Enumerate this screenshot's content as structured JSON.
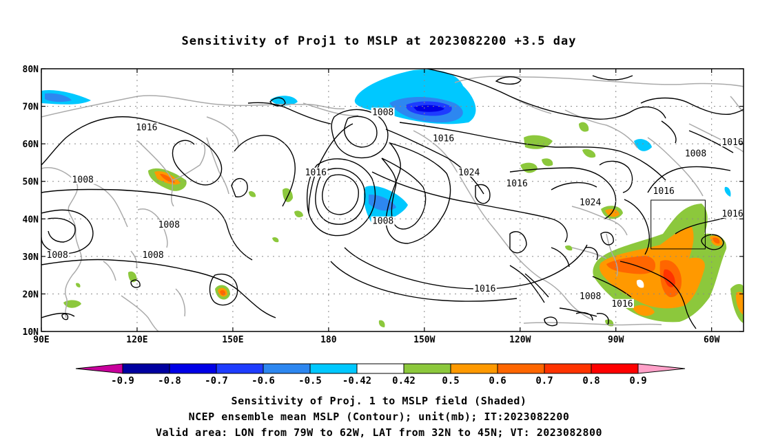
{
  "title": "Sensitivity of Proj1 to MSLP at 2023082200 +3.5 day",
  "captions": [
    "Sensitivity of Proj. 1 to MSLP field (Shaded)",
    "NCEP ensemble mean MSLP (Contour); unit(mb); IT:2023082200",
    "Valid area: LON from 79W to 62W, LAT from 32N to 45N; VT: 2023082800"
  ],
  "map": {
    "lon_range": [
      90,
      310
    ],
    "lat_range": [
      10,
      80
    ],
    "lon_ticks": [
      {
        "lon": 90,
        "label": "90E"
      },
      {
        "lon": 120,
        "label": "120E"
      },
      {
        "lon": 150,
        "label": "150E"
      },
      {
        "lon": 180,
        "label": "180"
      },
      {
        "lon": 210,
        "label": "150W"
      },
      {
        "lon": 240,
        "label": "120W"
      },
      {
        "lon": 270,
        "label": "90W"
      },
      {
        "lon": 300,
        "label": "60W"
      }
    ],
    "lat_ticks": [
      {
        "lat": 80,
        "label": "80N"
      },
      {
        "lat": 70,
        "label": "70N"
      },
      {
        "lat": 60,
        "label": "60N"
      },
      {
        "lat": 50,
        "label": "50N"
      },
      {
        "lat": 40,
        "label": "40N"
      },
      {
        "lat": 30,
        "label": "30N"
      },
      {
        "lat": 20,
        "label": "20N"
      },
      {
        "lat": 10,
        "label": "10N"
      }
    ],
    "grid": true,
    "valid_box": {
      "lon": [
        281,
        298
      ],
      "lat": [
        32,
        45
      ]
    },
    "contour_labels": [
      {
        "text": "1016",
        "lon": 123,
        "lat": 64
      },
      {
        "text": "1008",
        "lon": 103,
        "lat": 50
      },
      {
        "text": "1008",
        "lon": 130,
        "lat": 38
      },
      {
        "text": "1008",
        "lon": 125,
        "lat": 30
      },
      {
        "text": "1008",
        "lon": 95,
        "lat": 30
      },
      {
        "text": "1016",
        "lon": 176,
        "lat": 52
      },
      {
        "text": "1008",
        "lon": 197,
        "lat": 68
      },
      {
        "text": "1016",
        "lon": 216,
        "lat": 61
      },
      {
        "text": "1024",
        "lon": 224,
        "lat": 52
      },
      {
        "text": "1016",
        "lon": 239,
        "lat": 49
      },
      {
        "text": "1008",
        "lon": 197,
        "lat": 39
      },
      {
        "text": "1024",
        "lon": 262,
        "lat": 44
      },
      {
        "text": "1016",
        "lon": 285,
        "lat": 47
      },
      {
        "text": "1008",
        "lon": 295,
        "lat": 57
      },
      {
        "text": "1016",
        "lon": 310,
        "lat": 60
      },
      {
        "text": "1016",
        "lon": 314,
        "lat": 41
      },
      {
        "text": "1016",
        "lon": 229,
        "lat": 21
      },
      {
        "text": "1008",
        "lon": 262,
        "lat": 19
      },
      {
        "text": "1016",
        "lon": 272,
        "lat": 17
      }
    ]
  },
  "colorbar": {
    "labels": [
      "-0.9",
      "-0.8",
      "-0.7",
      "-0.6",
      "-0.5",
      "-0.42",
      "0.42",
      "0.5",
      "0.6",
      "0.7",
      "0.8",
      "0.9"
    ],
    "colors": [
      "#0000a0",
      "#0000e6",
      "#1e3cff",
      "#2d87f0",
      "#00c8ff",
      "#ffffff",
      "#8cc83c",
      "#ff9900",
      "#ff6600",
      "#ff3300",
      "#ff0000"
    ],
    "under_color": "#c8009c",
    "over_color": "#ffa0c8"
  }
}
